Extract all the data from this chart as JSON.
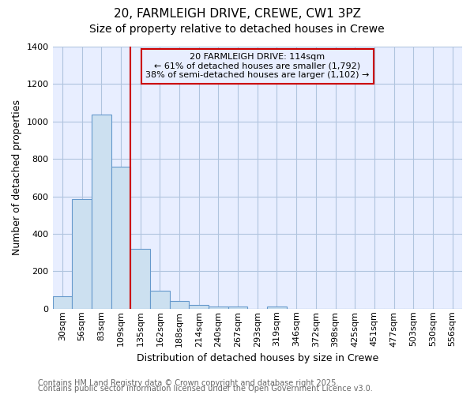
{
  "title1": "20, FARMLEIGH DRIVE, CREWE, CW1 3PZ",
  "title2": "Size of property relative to detached houses in Crewe",
  "xlabel": "Distribution of detached houses by size in Crewe",
  "ylabel": "Number of detached properties",
  "categories": [
    "30sqm",
    "56sqm",
    "83sqm",
    "109sqm",
    "135sqm",
    "162sqm",
    "188sqm",
    "214sqm",
    "240sqm",
    "267sqm",
    "293sqm",
    "319sqm",
    "346sqm",
    "372sqm",
    "398sqm",
    "425sqm",
    "451sqm",
    "477sqm",
    "503sqm",
    "530sqm",
    "556sqm"
  ],
  "values": [
    65,
    585,
    1035,
    760,
    320,
    95,
    40,
    22,
    12,
    10,
    0,
    12,
    0,
    0,
    0,
    0,
    0,
    0,
    0,
    0,
    0
  ],
  "bar_color": "#cce0f0",
  "bar_edge_color": "#6699cc",
  "vline_color": "#cc0000",
  "vline_x_idx": 3.5,
  "ylim": [
    0,
    1400
  ],
  "yticks": [
    0,
    200,
    400,
    600,
    800,
    1000,
    1200,
    1400
  ],
  "annotation_text": "20 FARMLEIGH DRIVE: 114sqm\n← 61% of detached houses are smaller (1,792)\n38% of semi-detached houses are larger (1,102) →",
  "annotation_box_color": "#cc0000",
  "footer1": "Contains HM Land Registry data © Crown copyright and database right 2025.",
  "footer2": "Contains public sector information licensed under the Open Government Licence v3.0.",
  "fig_bg_color": "#ffffff",
  "plot_bg_color": "#e8eeff",
  "grid_color": "#b0c4de",
  "title_fontsize": 11,
  "subtitle_fontsize": 10,
  "axis_label_fontsize": 9,
  "tick_fontsize": 8,
  "footer_fontsize": 7
}
